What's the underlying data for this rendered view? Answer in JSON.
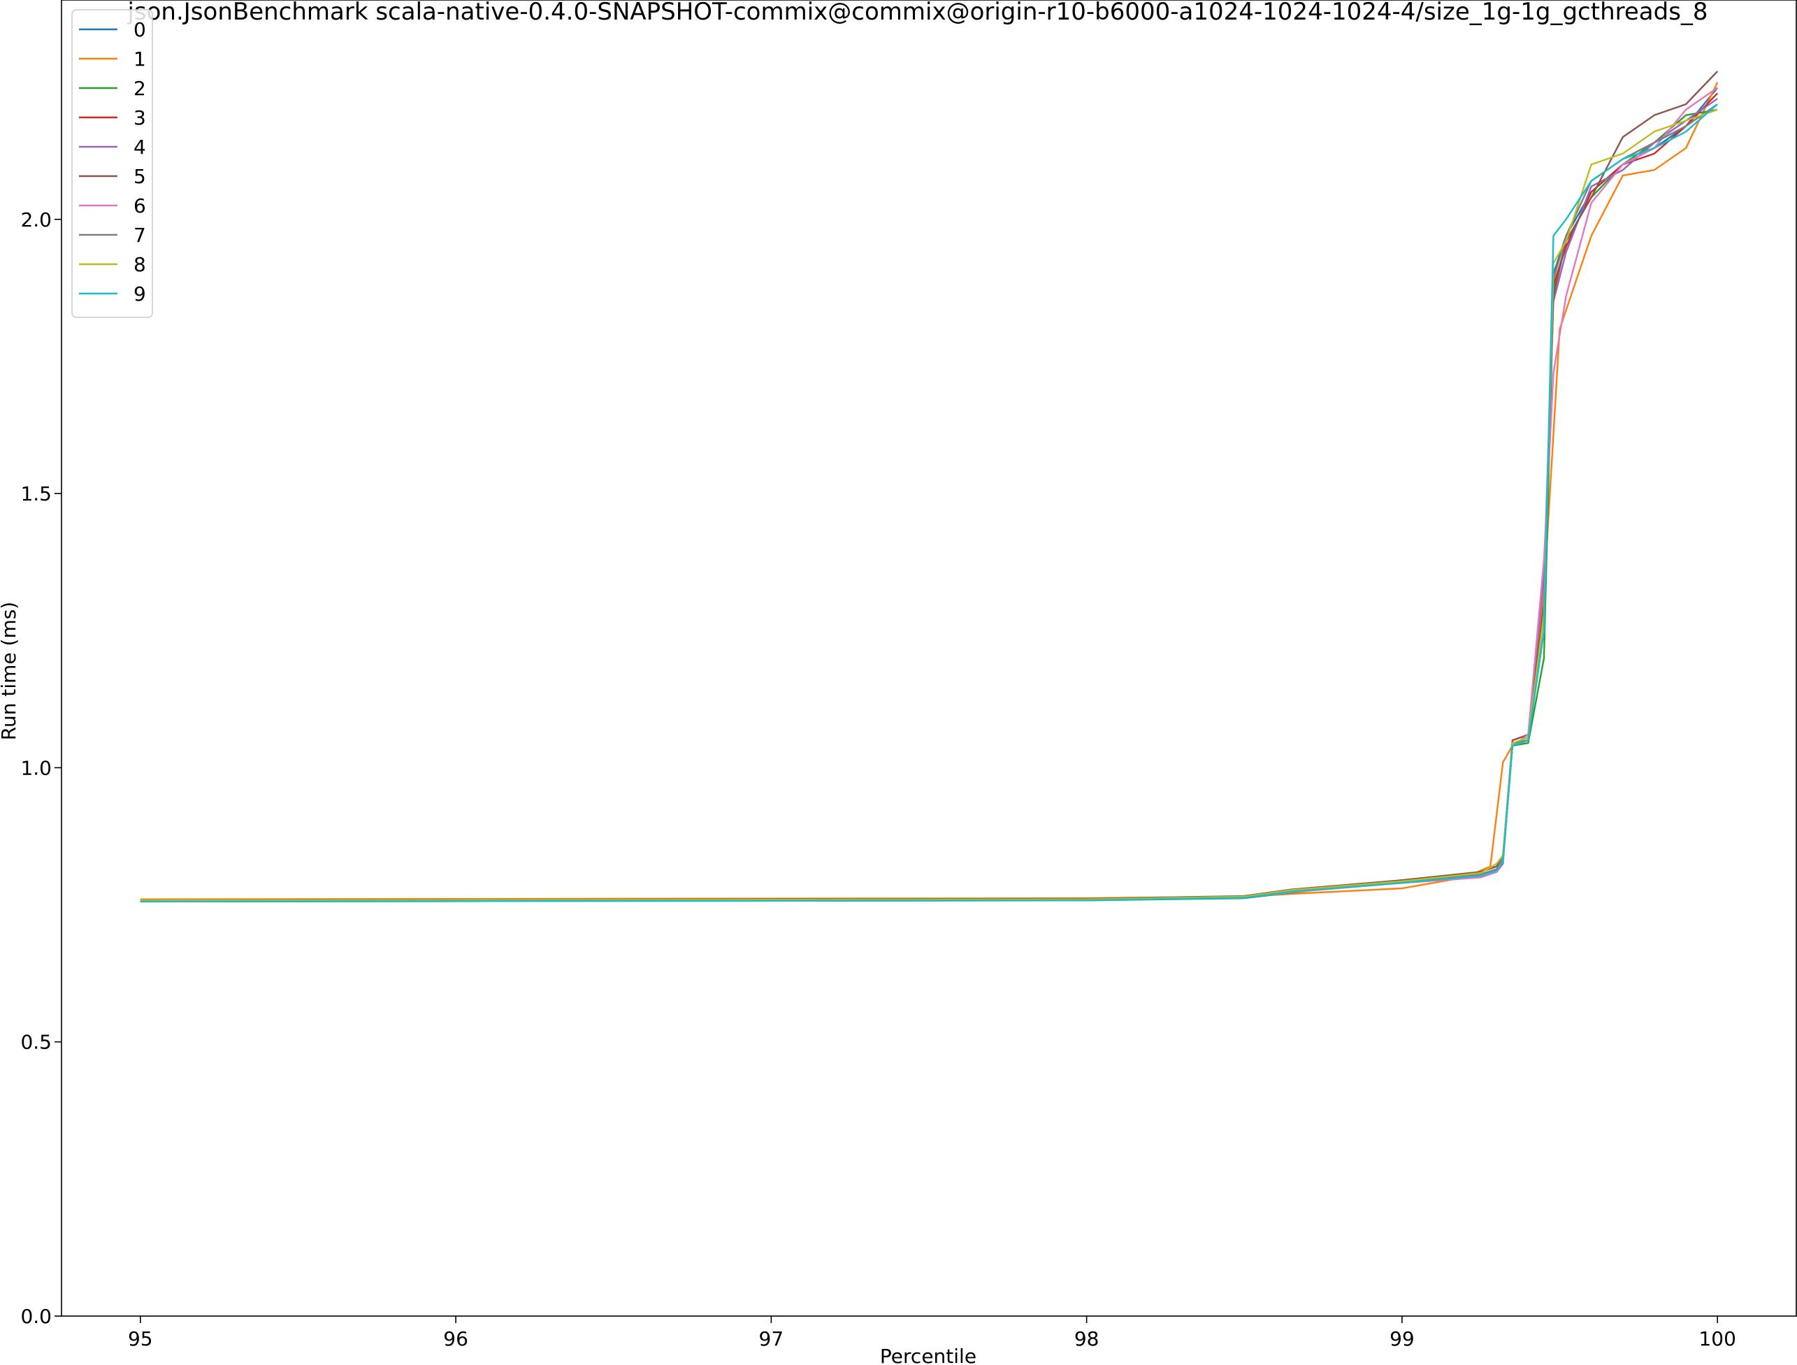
{
  "chart_data": {
    "type": "line",
    "title": "json.JsonBenchmark scala-native-0.4.0-SNAPSHOT-commix@commix@origin-r10-b6000-a1024-1024-1024-4/size_1g-1g_gcthreads_8",
    "xlabel": "Percentile",
    "ylabel": "Run time (ms)",
    "xlim": [
      94.75,
      100.25
    ],
    "ylim": [
      0.0,
      2.4
    ],
    "xticks": [
      95,
      96,
      97,
      98,
      99,
      100
    ],
    "xtick_labels": [
      "95",
      "96",
      "97",
      "98",
      "99",
      "100"
    ],
    "yticks": [
      0.0,
      0.5,
      1.0,
      1.5,
      2.0
    ],
    "ytick_labels": [
      "0.0",
      "0.5",
      "1.0",
      "1.5",
      "2.0"
    ],
    "grid": false,
    "legend_position": "top-left",
    "series": [
      {
        "name": "0",
        "color": "#1f77b4",
        "x": [
          95,
          98,
          98.5,
          98.65,
          99,
          99.25,
          99.3,
          99.32,
          99.35,
          99.4,
          99.45,
          99.48,
          99.52,
          99.6,
          99.7,
          99.8,
          99.9,
          100
        ],
        "y": [
          0.758,
          0.76,
          0.765,
          0.775,
          0.79,
          0.805,
          0.81,
          0.83,
          1.04,
          1.05,
          1.3,
          1.9,
          1.97,
          2.05,
          2.1,
          2.13,
          2.17,
          2.24
        ]
      },
      {
        "name": "1",
        "color": "#ff7f0e",
        "x": [
          95,
          98,
          98.5,
          98.65,
          99,
          99.2,
          99.28,
          99.32,
          99.35,
          99.4,
          99.45,
          99.5,
          99.6,
          99.7,
          99.8,
          99.9,
          100
        ],
        "y": [
          0.76,
          0.762,
          0.765,
          0.77,
          0.78,
          0.8,
          0.82,
          1.01,
          1.04,
          1.05,
          1.32,
          1.8,
          1.97,
          2.08,
          2.09,
          2.13,
          2.25
        ]
      },
      {
        "name": "2",
        "color": "#2ca02c",
        "x": [
          95,
          98,
          98.5,
          98.65,
          99,
          99.25,
          99.3,
          99.32,
          99.35,
          99.4,
          99.45,
          99.48,
          99.52,
          99.6,
          99.7,
          99.8,
          99.9,
          100
        ],
        "y": [
          0.756,
          0.758,
          0.762,
          0.772,
          0.795,
          0.81,
          0.82,
          0.84,
          1.04,
          1.045,
          1.2,
          1.87,
          1.96,
          2.04,
          2.1,
          2.14,
          2.19,
          2.2
        ]
      },
      {
        "name": "3",
        "color": "#d62728",
        "x": [
          95,
          98,
          98.5,
          98.65,
          99,
          99.25,
          99.3,
          99.32,
          99.35,
          99.4,
          99.45,
          99.48,
          99.52,
          99.6,
          99.7,
          99.8,
          99.9,
          100
        ],
        "y": [
          0.757,
          0.76,
          0.765,
          0.775,
          0.792,
          0.805,
          0.815,
          0.835,
          1.045,
          1.05,
          1.28,
          1.88,
          1.95,
          2.05,
          2.1,
          2.12,
          2.17,
          2.23
        ]
      },
      {
        "name": "4",
        "color": "#9467bd",
        "x": [
          95,
          98,
          98.5,
          98.65,
          99,
          99.25,
          99.3,
          99.32,
          99.35,
          99.4,
          99.45,
          99.48,
          99.52,
          99.6,
          99.7,
          99.8,
          99.9,
          100
        ],
        "y": [
          0.757,
          0.759,
          0.764,
          0.776,
          0.79,
          0.8,
          0.81,
          0.825,
          1.05,
          1.06,
          1.35,
          1.85,
          1.94,
          2.06,
          2.09,
          2.14,
          2.18,
          2.22
        ]
      },
      {
        "name": "5",
        "color": "#8c564b",
        "x": [
          95,
          98,
          98.5,
          98.65,
          99,
          99.25,
          99.3,
          99.32,
          99.35,
          99.4,
          99.45,
          99.48,
          99.52,
          99.6,
          99.7,
          99.8,
          99.9,
          100
        ],
        "y": [
          0.758,
          0.761,
          0.766,
          0.778,
          0.795,
          0.81,
          0.82,
          0.84,
          1.05,
          1.06,
          1.3,
          1.86,
          1.96,
          2.04,
          2.15,
          2.19,
          2.21,
          2.27
        ]
      },
      {
        "name": "6",
        "color": "#e377c2",
        "x": [
          95,
          98,
          98.5,
          98.65,
          99,
          99.25,
          99.3,
          99.32,
          99.35,
          99.4,
          99.45,
          99.48,
          99.52,
          99.6,
          99.7,
          99.8,
          99.9,
          100
        ],
        "y": [
          0.757,
          0.759,
          0.763,
          0.773,
          0.79,
          0.8,
          0.81,
          0.83,
          1.04,
          1.06,
          1.38,
          1.72,
          1.86,
          2.03,
          2.1,
          2.13,
          2.2,
          2.24
        ]
      },
      {
        "name": "7",
        "color": "#7f7f7f",
        "x": [
          95,
          98,
          98.5,
          98.65,
          99,
          99.25,
          99.3,
          99.32,
          99.35,
          99.4,
          99.45,
          99.48,
          99.52,
          99.6,
          99.7,
          99.8,
          99.9,
          100
        ],
        "y": [
          0.757,
          0.76,
          0.764,
          0.776,
          0.792,
          0.806,
          0.815,
          0.835,
          1.045,
          1.05,
          1.25,
          1.89,
          1.97,
          2.07,
          2.11,
          2.14,
          2.17,
          2.21
        ]
      },
      {
        "name": "8",
        "color": "#bcbd22",
        "x": [
          95,
          98,
          98.5,
          98.65,
          99,
          99.25,
          99.3,
          99.32,
          99.35,
          99.4,
          99.45,
          99.48,
          99.52,
          99.6,
          99.7,
          99.8,
          99.9,
          100
        ],
        "y": [
          0.758,
          0.76,
          0.765,
          0.777,
          0.793,
          0.808,
          0.825,
          0.84,
          1.045,
          1.055,
          1.28,
          1.92,
          1.96,
          2.1,
          2.12,
          2.16,
          2.18,
          2.2
        ]
      },
      {
        "name": "9",
        "color": "#17becf",
        "x": [
          95,
          98,
          98.5,
          98.65,
          99,
          99.25,
          99.3,
          99.32,
          99.35,
          99.4,
          99.45,
          99.48,
          99.52,
          99.6,
          99.7,
          99.8,
          99.9,
          100
        ],
        "y": [
          0.756,
          0.758,
          0.763,
          0.774,
          0.79,
          0.803,
          0.812,
          0.83,
          1.04,
          1.05,
          1.25,
          1.97,
          2.0,
          2.07,
          2.11,
          2.13,
          2.16,
          2.21
        ]
      }
    ]
  }
}
